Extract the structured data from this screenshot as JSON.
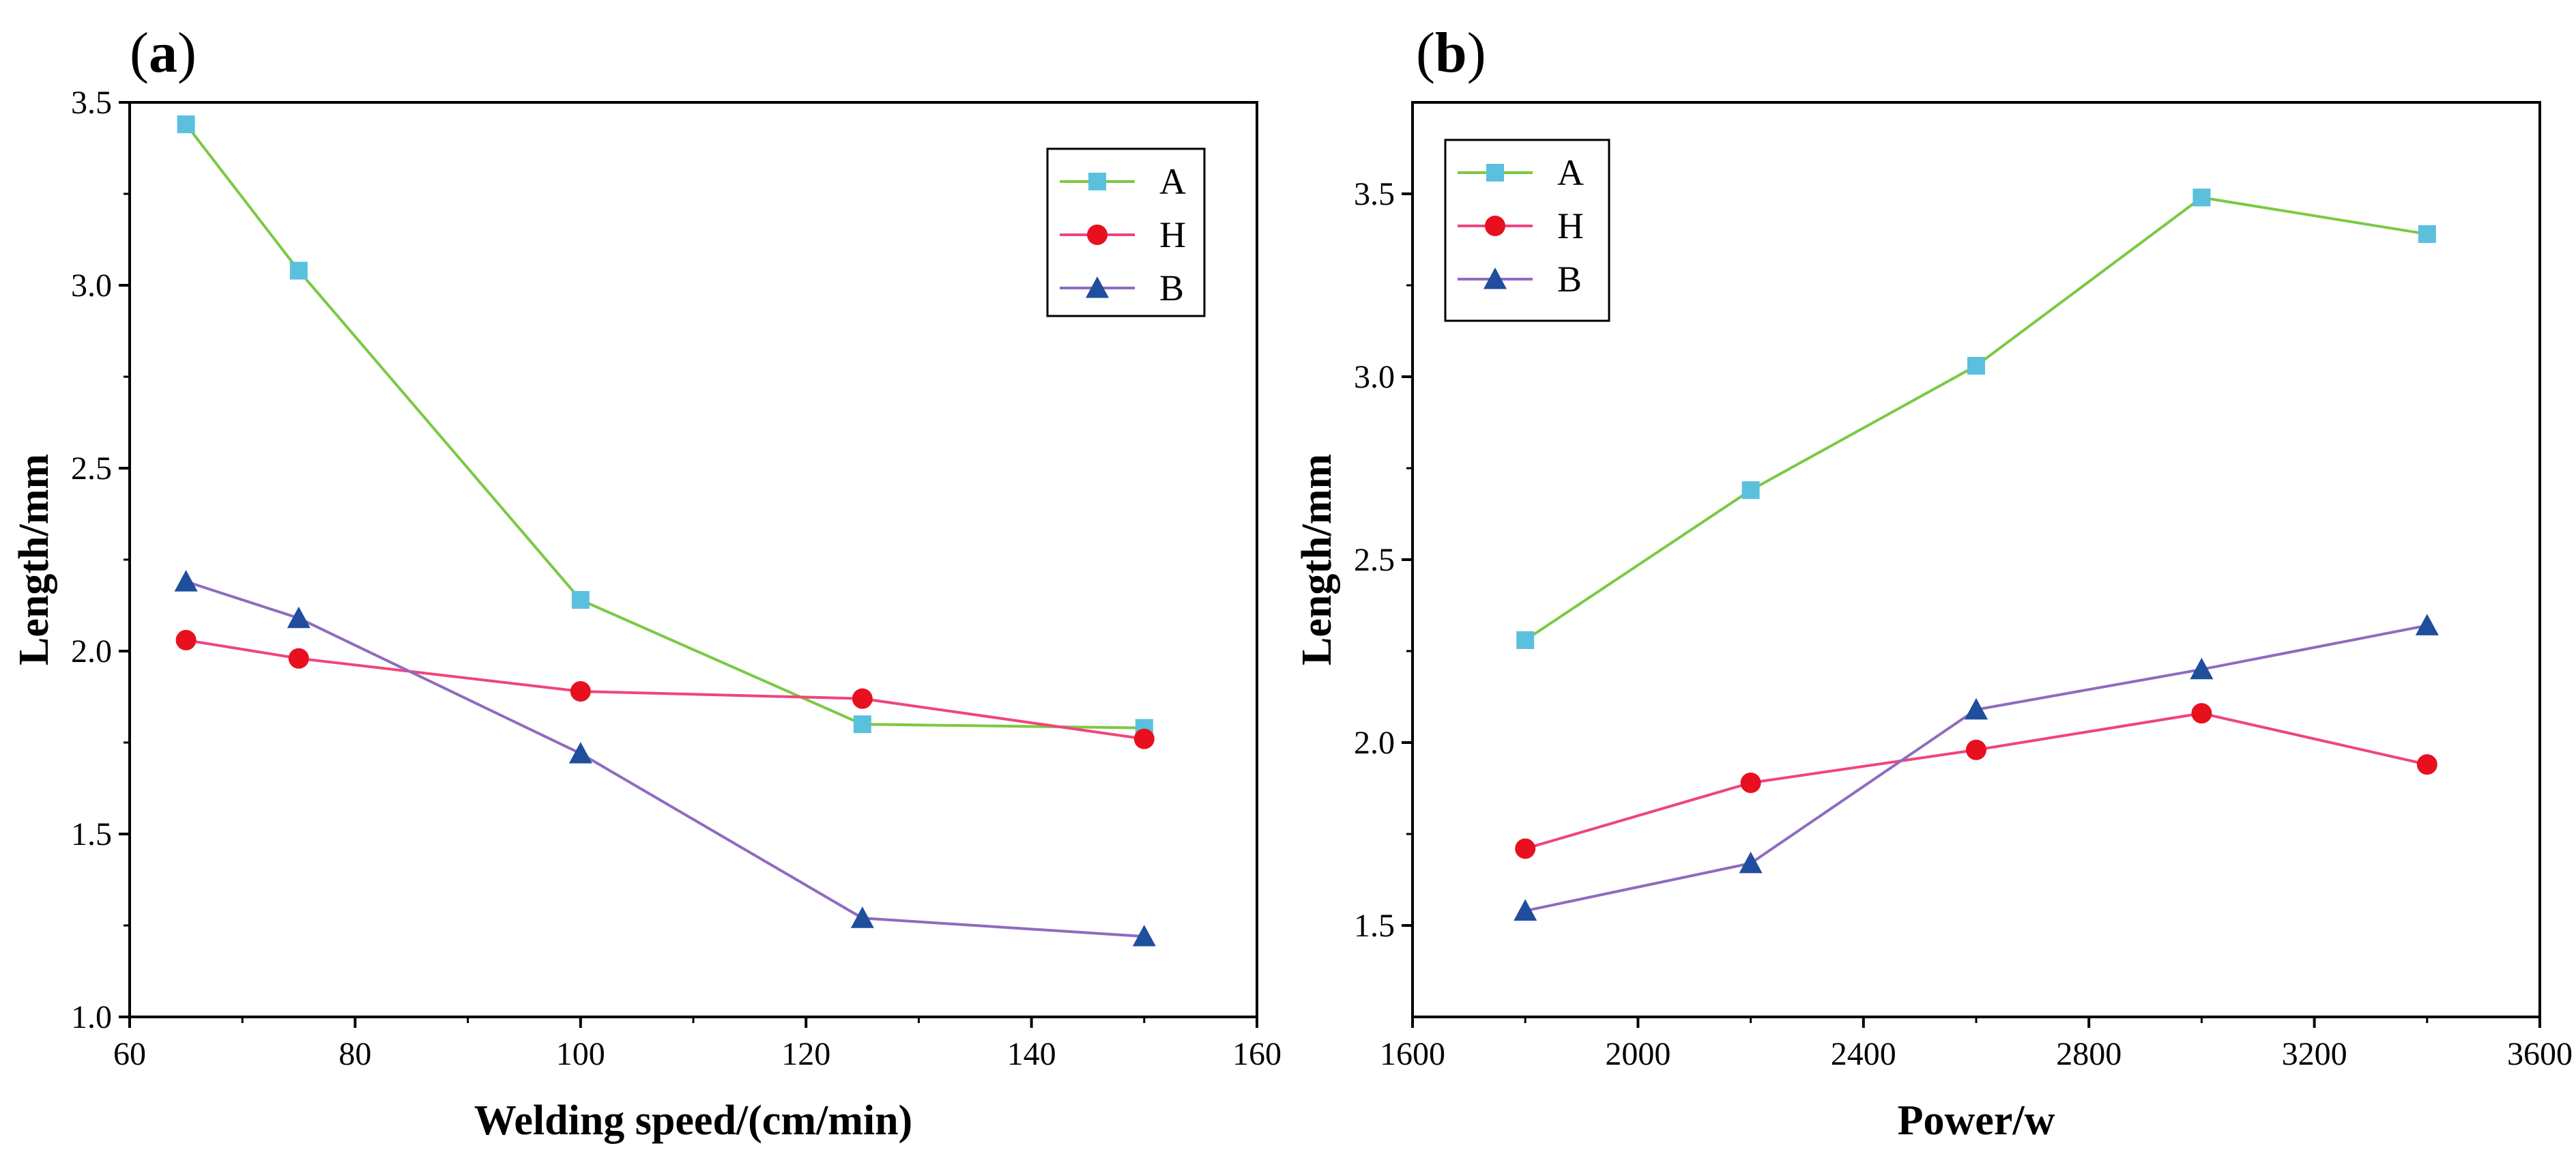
{
  "chart_data": [
    {
      "type": "line",
      "panel_label": "a",
      "title": "",
      "xlabel": "Welding speed/(cm/min)",
      "ylabel": "Length/mm",
      "xlim": [
        60,
        160
      ],
      "ylim": [
        1.0,
        3.5
      ],
      "xticks": [
        60,
        80,
        100,
        120,
        140,
        160
      ],
      "yticks": [
        1.0,
        1.5,
        2.0,
        2.5,
        3.0,
        3.5
      ],
      "x": [
        65,
        75,
        100,
        125,
        150
      ],
      "legend_position": "top-right",
      "grid": false,
      "series": [
        {
          "name": "A",
          "marker": "square",
          "line_color": "#7ac943",
          "marker_color": "#5bc0de",
          "values": [
            3.44,
            3.04,
            2.14,
            1.8,
            1.79
          ]
        },
        {
          "name": "H",
          "marker": "circle",
          "line_color": "#f0447e",
          "marker_color": "#e8101e",
          "values": [
            2.03,
            1.98,
            1.89,
            1.87,
            1.76
          ]
        },
        {
          "name": "B",
          "marker": "triangle",
          "line_color": "#8e6bbf",
          "marker_color": "#1f4e9c",
          "values": [
            2.19,
            2.09,
            1.72,
            1.27,
            1.22
          ]
        }
      ]
    },
    {
      "type": "line",
      "panel_label": "b",
      "title": "",
      "xlabel": "Power/w",
      "ylabel": "Length/mm",
      "xlim": [
        1600,
        3600
      ],
      "ylim": [
        1.25,
        3.75
      ],
      "xticks": [
        1600,
        2000,
        2400,
        2800,
        3200,
        3600
      ],
      "yticks": [
        1.5,
        2.0,
        2.5,
        3.0,
        3.5
      ],
      "x": [
        1800,
        2200,
        2600,
        3000,
        3400
      ],
      "legend_position": "top-left",
      "grid": false,
      "series": [
        {
          "name": "A",
          "marker": "square",
          "line_color": "#7ac943",
          "marker_color": "#5bc0de",
          "values": [
            2.28,
            2.69,
            3.03,
            3.49,
            3.39
          ]
        },
        {
          "name": "H",
          "marker": "circle",
          "line_color": "#f0447e",
          "marker_color": "#e8101e",
          "values": [
            1.71,
            1.89,
            1.98,
            2.08,
            1.94
          ]
        },
        {
          "name": "B",
          "marker": "triangle",
          "line_color": "#8e6bbf",
          "marker_color": "#1f4e9c",
          "values": [
            1.54,
            1.67,
            2.09,
            2.2,
            2.32
          ]
        }
      ]
    }
  ]
}
